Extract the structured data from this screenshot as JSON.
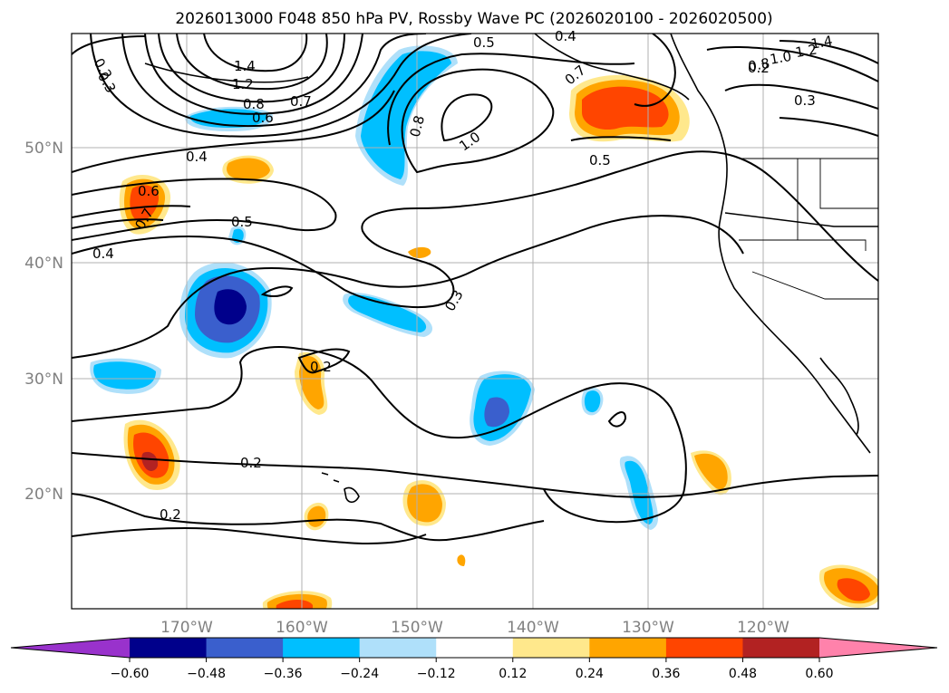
{
  "chart_data": {
    "type": "map-contour",
    "title": "2026013000 F048 850 hPa PV, Rossby Wave PC (2026020100 - 2026020500)",
    "x_ticks": [
      "170°W",
      "160°W",
      "150°W",
      "140°W",
      "130°W",
      "120°W"
    ],
    "y_ticks": [
      "50°N",
      "40°N",
      "30°N",
      "20°N"
    ],
    "contour_labels": [
      "1.4",
      "1.2",
      "1.0",
      "0.8",
      "0.7",
      "0.6",
      "0.5",
      "0.4",
      "0.3",
      "0.2"
    ],
    "colorbar": {
      "levels": [
        -0.6,
        -0.48,
        -0.36,
        -0.24,
        -0.12,
        0.12,
        0.24,
        0.36,
        0.48,
        0.6
      ],
      "tick_labels": [
        "−0.60",
        "−0.48",
        "−0.36",
        "−0.24",
        "−0.12",
        "0.12",
        "0.24",
        "0.36",
        "0.48",
        "0.60"
      ],
      "colors": [
        "#9932cc",
        "#00008b",
        "#3a5fcd",
        "#00bfff",
        "#afe0fa",
        "#ffffff",
        "#ffe88c",
        "#ffa500",
        "#ff4500",
        "#b22222",
        "#ff82ab"
      ],
      "extend": "both"
    },
    "grid": true
  }
}
